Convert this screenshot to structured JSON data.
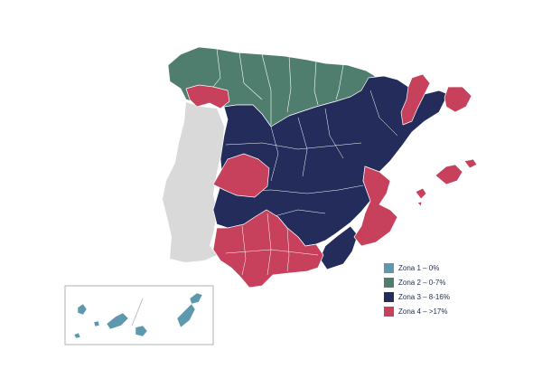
{
  "colors": {
    "zona1": "#5e98ac",
    "zona2": "#4f7d6e",
    "zona3": "#232c5b",
    "zona4": "#c7415d",
    "portugal": "#d9d9d9",
    "inset_border": "#b0b0b0"
  },
  "legend": {
    "items": [
      {
        "label": "Zona 1 – 0%",
        "zone": "zona1"
      },
      {
        "label": "Zona 2 – 0-7%",
        "zone": "zona2"
      },
      {
        "label": "Zona 3 – 8-16%",
        "zone": "zona3"
      },
      {
        "label": "Zona 4 – >17%",
        "zone": "zona4"
      }
    ]
  }
}
